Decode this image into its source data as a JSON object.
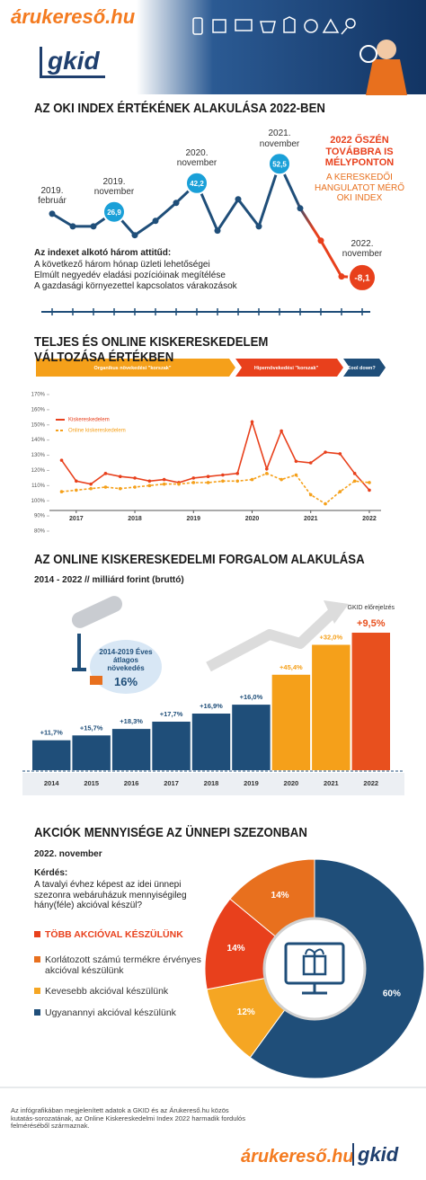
{
  "header": {
    "logo": "árukereső.hu",
    "brand": "gkid"
  },
  "chart_data": [
    {
      "type": "line",
      "title": "AZ OKI INDEX ÉRTÉKÉNEK ALAKULÁSA 2022-BEN",
      "categories": [
        "2019. február",
        null,
        null,
        "2019. november",
        null,
        null,
        null,
        "2020. november",
        null,
        null,
        null,
        "2021. november",
        null,
        null,
        null,
        "2022. november"
      ],
      "values": [
        25.9,
        19.2,
        19.2,
        26.9,
        14.5,
        22.1,
        31.7,
        42.2,
        16.9,
        33.6,
        19.2,
        52.5,
        28.8,
        11.6,
        -7.5,
        -8.1
      ],
      "value_labels": [
        null,
        null,
        null,
        "26,9",
        null,
        null,
        null,
        "42,2",
        null,
        null,
        null,
        "52,5",
        null,
        null,
        null,
        "-8,1"
      ],
      "color": "#1f4e79",
      "highlight_color": "#1aa0d8",
      "end_color": "#e8401c",
      "headline": "2022 ŐSZÉN TOVÁBBRA IS MÉLYPONTON",
      "note": "A KERESKEDŐI HANGULATOT MÉRŐ OKI INDEX",
      "legend_title": "Az indexet alkotó három attitűd:",
      "attitudes": [
        "A következő három hónap üzleti lehetőségei",
        "Elmúlt negyedév eladási pozícióinak megítélése",
        "A gazdasági környezettel kapcsolatos várakozások"
      ]
    },
    {
      "type": "line",
      "title": "TELJES ÉS ONLINE KISKERESKEDELEM VÁLTOZÁSA ÉRTÉKBEN",
      "phases": [
        "Organikus növekedési \"korszak\"",
        "Hipernövekedési \"korszak\"",
        "Cool down?"
      ],
      "phase_colors": [
        "#f5a01a",
        "#e8401c",
        "#1f4e79"
      ],
      "x": [
        2016.75,
        2017,
        2017.25,
        2017.5,
        2017.75,
        2018,
        2018.25,
        2018.5,
        2018.75,
        2019,
        2019.25,
        2019.5,
        2019.75,
        2020,
        2020.25,
        2020.5,
        2020.75,
        2021,
        2021.25,
        2021.5,
        2021.75,
        2022
      ],
      "xlim": [
        2016.65,
        2022.2
      ],
      "xticks": [
        2017,
        2018,
        2019,
        2020,
        2021,
        2022
      ],
      "ylim": [
        80,
        170
      ],
      "yticks": [
        {
          "value": 80,
          "label": "80%"
        },
        {
          "value": 90,
          "label": "90%"
        },
        {
          "value": 100,
          "label": "100%"
        },
        {
          "value": 110,
          "label": "110%"
        },
        {
          "value": 120,
          "label": "120%"
        },
        {
          "value": 130,
          "label": "130%"
        },
        {
          "value": 140,
          "label": "140%"
        },
        {
          "value": 150,
          "label": "150%"
        },
        {
          "value": 160,
          "label": "160%"
        },
        {
          "value": 170,
          "label": "170%"
        }
      ],
      "series": [
        {
          "name": "Kiskereskedelem",
          "color": "#e8401c",
          "dashed": false,
          "values": [
            126.7,
            113,
            111,
            118,
            116,
            115,
            113,
            114,
            112,
            115,
            116,
            117,
            118,
            152,
            121,
            146,
            126,
            125,
            132,
            131,
            118,
            107
          ]
        },
        {
          "name": "Online kiskereskedelem",
          "color": "#f5a01a",
          "dashed": true,
          "values": [
            106,
            107,
            108,
            109,
            108,
            109,
            110,
            111,
            111,
            112,
            112,
            113,
            113,
            114,
            118,
            114,
            117,
            104,
            98,
            106,
            113,
            112
          ]
        }
      ]
    },
    {
      "type": "bar",
      "title": "AZ ONLINE KISKERESKEDELMI FORGALOM ALAKULÁSA",
      "subtitle": "2014 - 2022 // milliárd forint (bruttó)",
      "categories": [
        "2014",
        "2015",
        "2016",
        "2017",
        "2018",
        "2019",
        "2020",
        "2021",
        "2022"
      ],
      "values": [
        370,
        430,
        510,
        600,
        700,
        810,
        1180,
        1550,
        1700
      ],
      "colors": [
        "#1f4e79",
        "#1f4e79",
        "#1f4e79",
        "#1f4e79",
        "#1f4e79",
        "#1f4e79",
        "#f5a01a",
        "#f5a01a",
        "#e8501e"
      ],
      "growth_labels": [
        "+11,7%",
        "+15,7%",
        "+18,3%",
        "+17,7%",
        "+16,9%",
        "+16,0%",
        "+45,4%",
        "+32,0%",
        "+9,5%"
      ],
      "forecast_label": "GKID előrejelzés",
      "cloud_text": "2014-2019 Éves átlagos növekedés",
      "cloud_value": "16%"
    },
    {
      "type": "pie",
      "title": "AKCIÓK MENNYISÉGE AZ ÜNNEPI SZEZONBAN",
      "subtitle": "2022. november",
      "question_label": "Kérdés:",
      "question": "A tavalyi évhez képest az idei ünnepi szezonra webáruházuk mennyiségileg hány(féle) akcióval készül?",
      "categories": [
        "TÖBB AKCIÓVAL KÉSZÜLÜNK",
        "Korlátozott számú termékre érvényes akcióval készülünk",
        "Kevesebb akcióval készülünk",
        "Ugyanannyi akcióval készülünk"
      ],
      "values": [
        14,
        14,
        12,
        60
      ],
      "value_labels": [
        "14%",
        "14%",
        "12%",
        "60%"
      ],
      "colors": [
        "#e8401c",
        "#e8701e",
        "#f5a623",
        "#1f4e79"
      ]
    }
  ],
  "footer": {
    "text": "Az infógrafikában megjelenített adatok a GKID és az Árukereső.hu közös kutatás-sorozatának, az Online Kiskereskedelmi Index 2022 harmadik fordulós felméréséből származnak.",
    "logo": "árukereső.hu",
    "brand": "gkid"
  }
}
